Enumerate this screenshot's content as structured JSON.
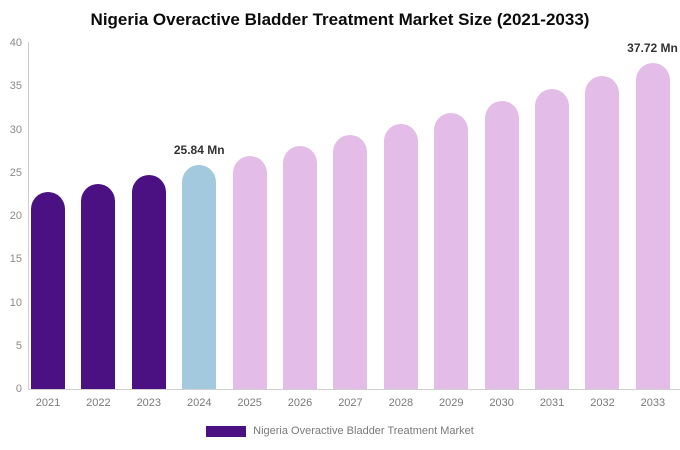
{
  "colors": {
    "background": "#ffffff",
    "title_text": "#0b0b0b",
    "axis_line": "#cfcfcf",
    "tick_label_text": "#8a8a8a",
    "annotation_text": "#333333",
    "legend_text": "#7a7a7a"
  },
  "chart_data": {
    "type": "bar",
    "title": "Nigeria Overactive Bladder Treatment Market Size (2021-2033)",
    "xlabel": "",
    "ylabel": "",
    "unit": "Mn",
    "categories": [
      "2021",
      "2022",
      "2023",
      "2024",
      "2025",
      "2026",
      "2027",
      "2028",
      "2029",
      "2030",
      "2031",
      "2032",
      "2033"
    ],
    "series": [
      {
        "name": "Nigeria Overactive Bladder Treatment Market",
        "values": [
          22.77,
          23.75,
          24.77,
          25.84,
          26.95,
          28.11,
          29.32,
          30.58,
          31.89,
          33.26,
          34.69,
          36.18,
          37.72
        ]
      }
    ],
    "bar_colors": [
      "#4B1182",
      "#4B1182",
      "#4B1182",
      "#A3C9DF",
      "#E3BCE7",
      "#E3BCE7",
      "#E3BCE7",
      "#E3BCE7",
      "#E3BCE7",
      "#E3BCE7",
      "#E3BCE7",
      "#E3BCE7",
      "#E3BCE7"
    ],
    "color_meaning": {
      "historical": "#4B1182",
      "highlighted_current": "#A3C9DF",
      "forecast": "#E3BCE7"
    },
    "annotations": [
      {
        "category": "2024",
        "text": "25.84 Mn"
      },
      {
        "category": "2033",
        "text": "37.72 Mn"
      }
    ],
    "ylim": [
      0,
      40
    ],
    "ytick_interval": 5,
    "yticks": [
      0,
      5,
      10,
      15,
      20,
      25,
      30,
      35,
      40
    ],
    "grid": false,
    "legend": {
      "position": "bottom",
      "entries": [
        {
          "label": "Nigeria Overactive Bladder Treatment Market",
          "color": "#4B1182"
        }
      ]
    }
  }
}
